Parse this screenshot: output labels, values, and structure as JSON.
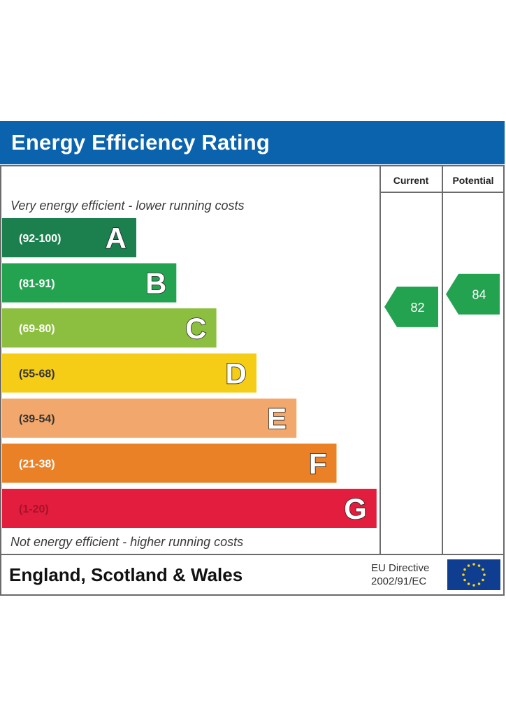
{
  "header": {
    "title": "Energy Efficiency Rating"
  },
  "columns": {
    "current": "Current",
    "potential": "Potential"
  },
  "notes": {
    "top": "Very energy efficient - lower running costs",
    "bottom": "Not energy efficient - higher running costs"
  },
  "footer": {
    "region": "England, Scotland & Wales",
    "directive_line1": "EU Directive",
    "directive_line2": "2002/91/EC",
    "flag_icon": "eu-flag-icon"
  },
  "chart_data": {
    "type": "bar",
    "title": "Energy Efficiency Rating",
    "bands": [
      {
        "letter": "A",
        "range": "(92-100)",
        "color": "#1b7f4e"
      },
      {
        "letter": "B",
        "range": "(81-91)",
        "color": "#23a350"
      },
      {
        "letter": "C",
        "range": "(69-80)",
        "color": "#8cbf3f"
      },
      {
        "letter": "D",
        "range": "(55-68)",
        "color": "#f5cc16"
      },
      {
        "letter": "E",
        "range": "(39-54)",
        "color": "#f2a86c"
      },
      {
        "letter": "F",
        "range": "(21-38)",
        "color": "#ea8126"
      },
      {
        "letter": "G",
        "range": "(1-20)",
        "color": "#e31d3d"
      }
    ],
    "current": {
      "value": 82,
      "band": "B",
      "color": "#23a350"
    },
    "potential": {
      "value": 84,
      "band": "B",
      "color": "#23a350"
    }
  }
}
